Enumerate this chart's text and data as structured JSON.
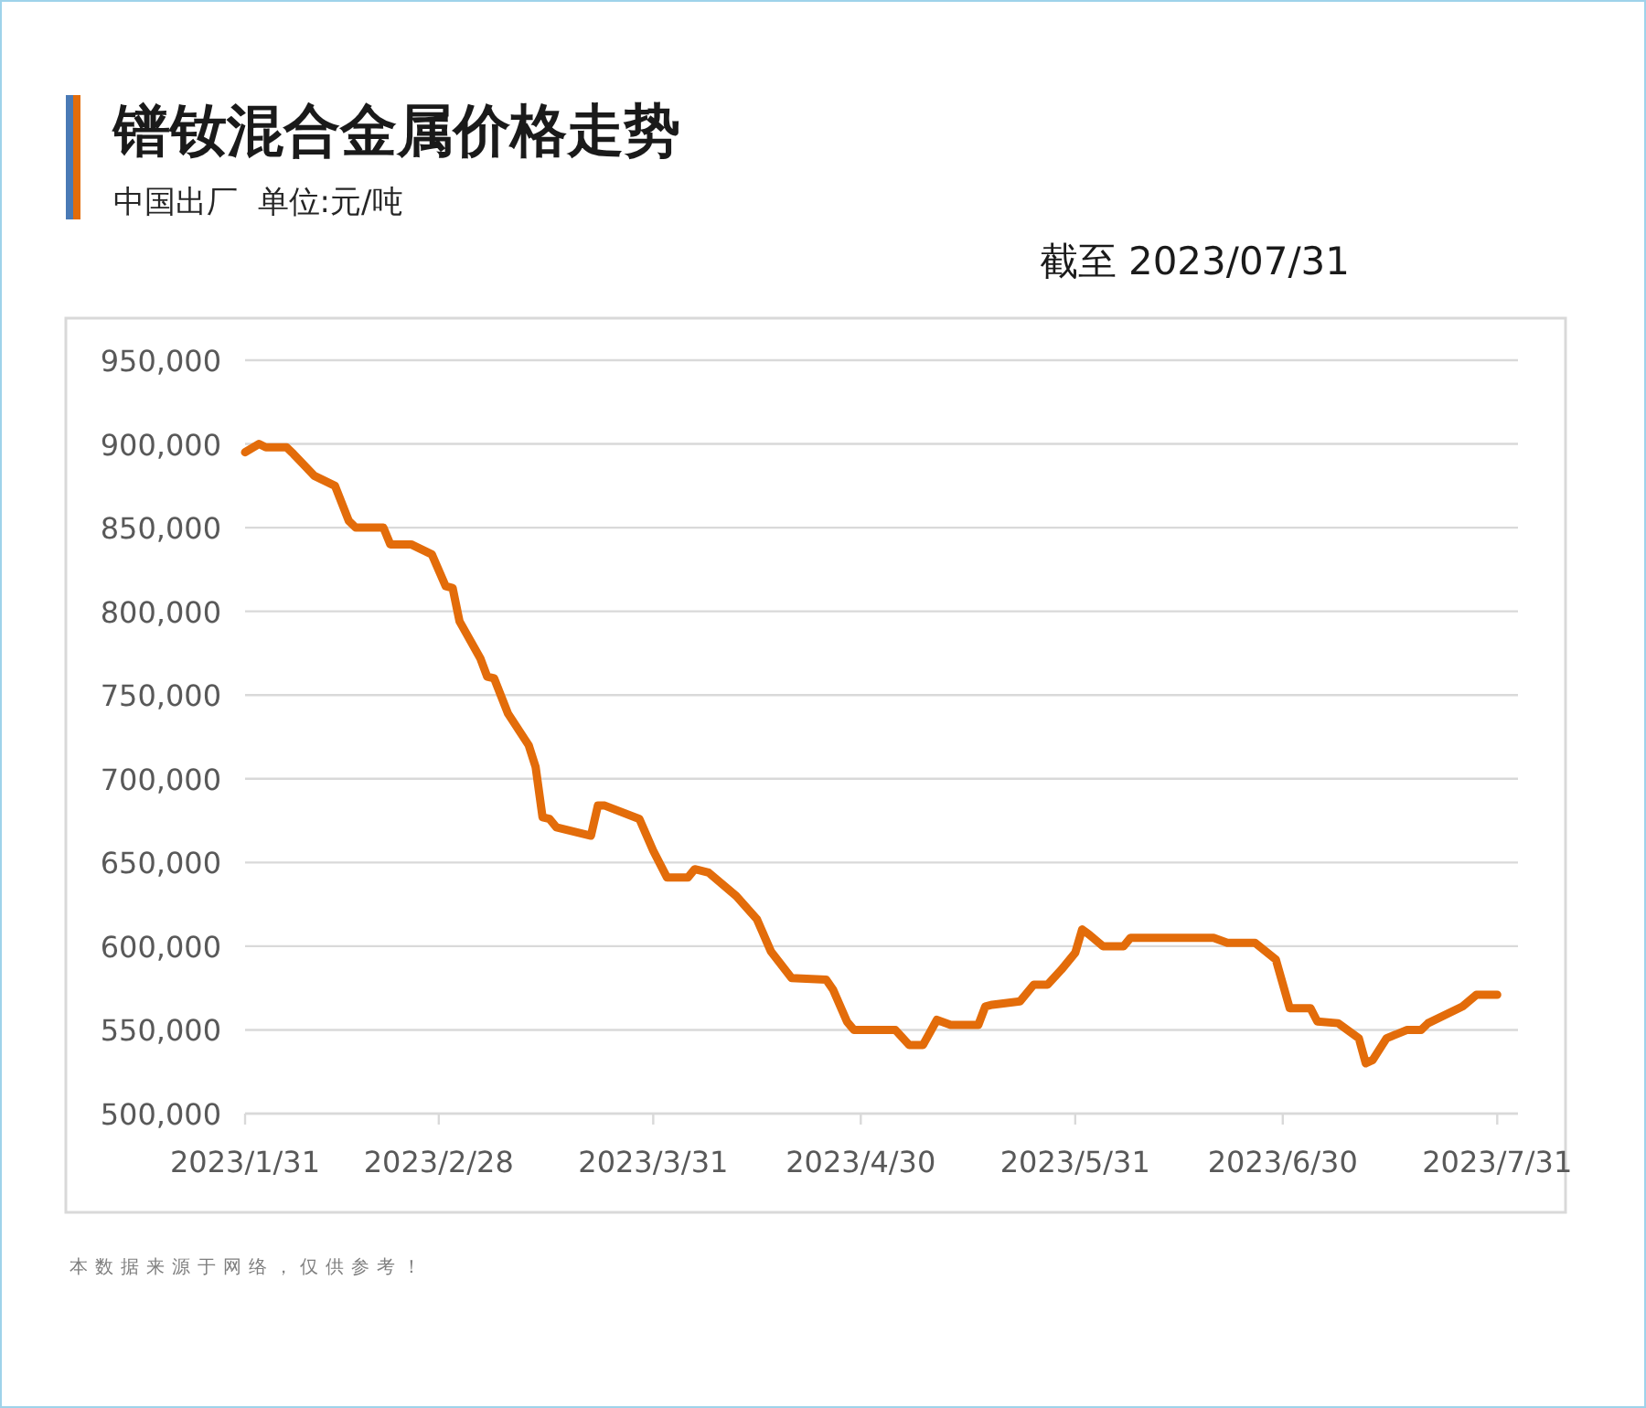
{
  "chart_data": {
    "type": "line",
    "title": "镨钕混合金属价格走势",
    "subtitle": "中国出厂  单位:元/吨",
    "annotations": [
      "截至 2023/07/31",
      "本数据来源于网络，仅供参考！"
    ],
    "x": [
      "2023-01-31",
      "2023-02-02",
      "2023-02-03",
      "2023-02-06",
      "2023-02-07",
      "2023-02-10",
      "2023-02-13",
      "2023-02-15",
      "2023-02-16",
      "2023-02-20",
      "2023-02-21",
      "2023-02-24",
      "2023-02-27",
      "2023-03-01",
      "2023-03-02",
      "2023-03-03",
      "2023-03-06",
      "2023-03-07",
      "2023-03-08",
      "2023-03-10",
      "2023-03-13",
      "2023-03-14",
      "2023-03-15",
      "2023-03-16",
      "2023-03-17",
      "2023-03-22",
      "2023-03-23",
      "2023-03-24",
      "2023-03-29",
      "2023-03-31",
      "2023-04-02",
      "2023-04-05",
      "2023-04-06",
      "2023-04-08",
      "2023-04-12",
      "2023-04-15",
      "2023-04-17",
      "2023-04-20",
      "2023-04-25",
      "2023-04-26",
      "2023-04-28",
      "2023-04-29",
      "2023-05-05",
      "2023-05-07",
      "2023-05-09",
      "2023-05-11",
      "2023-05-13",
      "2023-05-17",
      "2023-05-18",
      "2023-05-19",
      "2023-05-23",
      "2023-05-25",
      "2023-05-27",
      "2023-05-29",
      "2023-05-31",
      "2023-06-01",
      "2023-06-02",
      "2023-06-04",
      "2023-06-07",
      "2023-06-08",
      "2023-06-20",
      "2023-06-22",
      "2023-06-26",
      "2023-06-29",
      "2023-07-01",
      "2023-07-04",
      "2023-07-05",
      "2023-07-08",
      "2023-07-11",
      "2023-07-12",
      "2023-07-13",
      "2023-07-15",
      "2023-07-18",
      "2023-07-20",
      "2023-07-21",
      "2023-07-26",
      "2023-07-28",
      "2023-07-31"
    ],
    "series": [
      {
        "color": "#e36c0a",
        "values": [
          895000,
          900000,
          898000,
          898000,
          894000,
          881000,
          875000,
          854000,
          850000,
          850000,
          840000,
          840000,
          834000,
          815000,
          814000,
          794000,
          772000,
          761000,
          760000,
          739000,
          720000,
          707000,
          677000,
          676000,
          671000,
          666000,
          684000,
          684000,
          676000,
          657000,
          641000,
          641000,
          646000,
          644000,
          630000,
          616000,
          597000,
          581000,
          580000,
          574000,
          555000,
          550000,
          550000,
          541000,
          541000,
          556000,
          553000,
          553000,
          564000,
          565000,
          567000,
          577000,
          577000,
          586000,
          596000,
          610000,
          607000,
          600000,
          600000,
          605000,
          605000,
          602000,
          602000,
          592000,
          563000,
          563000,
          555000,
          554000,
          545000,
          530000,
          532000,
          545000,
          550000,
          550000,
          554000,
          564000,
          571000,
          571000
        ]
      }
    ],
    "xlim": [
      "2023-01-31",
      "2023-08-03"
    ],
    "xticks": [
      {
        "value": "2023-01-31",
        "label": "2023/1/31"
      },
      {
        "value": "2023-02-28",
        "label": "2023/2/28"
      },
      {
        "value": "2023-03-31",
        "label": "2023/3/31"
      },
      {
        "value": "2023-04-30",
        "label": "2023/4/30"
      },
      {
        "value": "2023-05-31",
        "label": "2023/5/31"
      },
      {
        "value": "2023-06-30",
        "label": "2023/6/30"
      },
      {
        "value": "2023-07-31",
        "label": "2023/7/31"
      }
    ],
    "ylim": [
      500000,
      950000
    ],
    "yticks": [
      {
        "value": 500000,
        "label": "500,000"
      },
      {
        "value": 550000,
        "label": "550,000"
      },
      {
        "value": 600000,
        "label": "600,000"
      },
      {
        "value": 650000,
        "label": "650,000"
      },
      {
        "value": 700000,
        "label": "700,000"
      },
      {
        "value": 750000,
        "label": "750,000"
      },
      {
        "value": 800000,
        "label": "800,000"
      },
      {
        "value": 850000,
        "label": "850,000"
      },
      {
        "value": 900000,
        "label": "900,000"
      },
      {
        "value": 950000,
        "label": "950,000"
      }
    ],
    "grid": "y",
    "marker": "none",
    "line_style": "solid"
  }
}
